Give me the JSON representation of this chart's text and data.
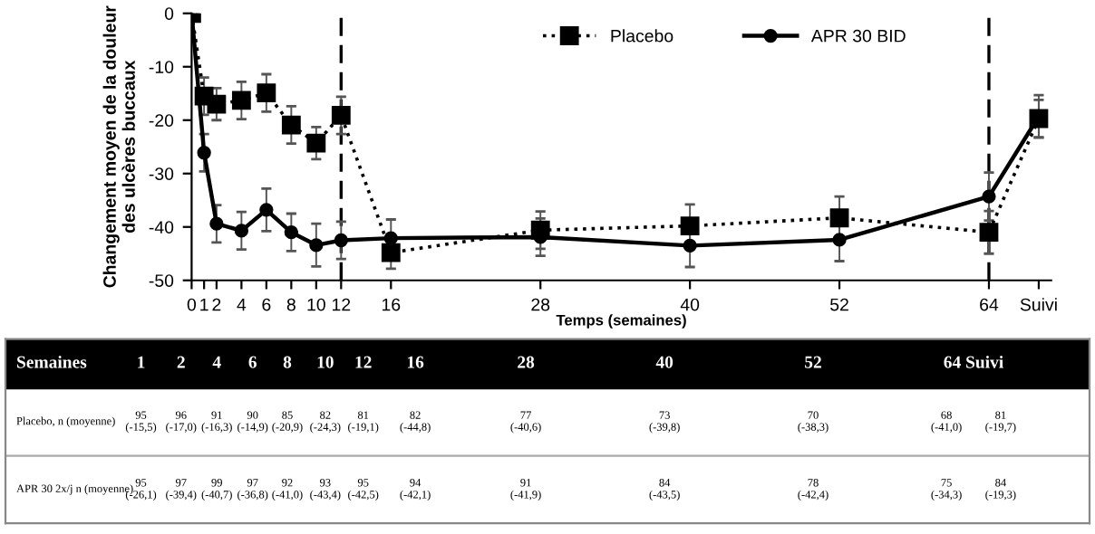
{
  "chart_data": {
    "type": "line",
    "xlabel": "Temps (semaines)",
    "ylabel": "Changement moyen de la douleur\ndes ulcères buccaux",
    "x": [
      0,
      1,
      2,
      4,
      6,
      8,
      10,
      12,
      16,
      28,
      40,
      52,
      64,
      68
    ],
    "xlim": [
      0,
      69
    ],
    "ylim": [
      -50,
      0
    ],
    "xticks": [
      0,
      1,
      2,
      4,
      6,
      8,
      10,
      12,
      16,
      28,
      40,
      52,
      64,
      {
        "value": 68,
        "label": "Suivi"
      }
    ],
    "yticks": [
      0,
      -10,
      -20,
      -30,
      -40,
      -50
    ],
    "grid": false,
    "legend": "top",
    "ref_lines": [
      {
        "axis": "x",
        "value": 12,
        "color": "#000000",
        "line_style": "dashed"
      },
      {
        "axis": "x",
        "value": 64,
        "color": "#000000",
        "line_style": "dashed"
      }
    ],
    "series": [
      {
        "name": "Placebo",
        "color": "#000000",
        "marker": "square",
        "line_style": "dotted",
        "values": [
          0,
          -15.5,
          -17.0,
          -16.3,
          -14.9,
          -20.9,
          -24.3,
          -19.1,
          -44.8,
          -40.6,
          -39.8,
          -38.3,
          -41.0,
          -19.7
        ],
        "errors": [
          null,
          3.5,
          3,
          3.5,
          3.5,
          3.5,
          3,
          3.5,
          3,
          3.5,
          4,
          4,
          4,
          3.5
        ]
      },
      {
        "name": "APR 30 BID",
        "color": "#000000",
        "marker": "circle",
        "line_style": "solid",
        "values": [
          0,
          -26.1,
          -39.4,
          -40.7,
          -36.8,
          -41.0,
          -43.4,
          -42.5,
          -42.1,
          -41.9,
          -43.5,
          -42.4,
          -34.3,
          -19.3
        ],
        "errors": [
          null,
          3.5,
          3.5,
          3.5,
          4,
          3.5,
          4,
          3.5,
          3.5,
          3.5,
          4,
          4,
          4.5,
          4
        ]
      }
    ],
    "annotations": [
      "Semaines",
      "1",
      "2",
      "4",
      "6",
      "8",
      "10",
      "12",
      "16",
      "28",
      "40",
      "52",
      "64 Suivi",
      "Placebo, n (moyenne)",
      "95\n(-15,5)",
      "96\n(-17,0)",
      "91\n(-16,3)",
      "90\n(-14,9)",
      "85\n(-20,9)",
      "82\n(-24,3)",
      "81\n(-19,1)",
      "82\n(-44,8)",
      "77\n(-40,6)",
      "73\n(-39,8)",
      "70\n(-38,3)",
      "68\n(-41,0)",
      "81\n(-19,7)",
      "APR 30 2x/j n (moyenne)",
      "95\n(-26,1)",
      "97\n(-39,4)",
      "99\n(-40,7)",
      "97\n(-36,8)",
      "92\n(-41,0)",
      "93\n(-43,4)",
      "95\n(-42,5)",
      "94\n(-42,1)",
      "91\n(-41,9)",
      "84\n(-43,5)",
      "78\n(-42,4)",
      "75\n(-34,3)",
      "84\n(-19,3)"
    ]
  }
}
